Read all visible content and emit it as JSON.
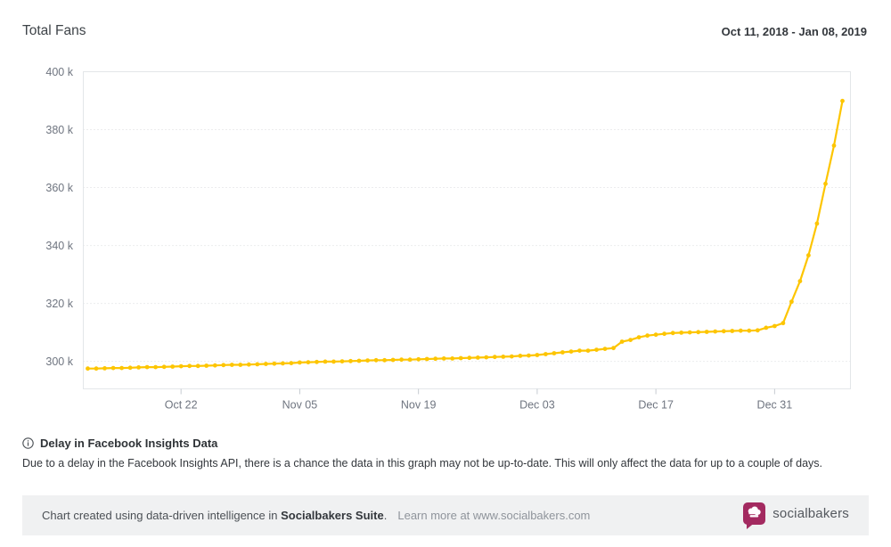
{
  "header": {
    "title": "Total Fans",
    "date_range": "Oct 11, 2018 - Jan 08, 2019"
  },
  "chart_data": {
    "type": "line",
    "title": "Total Fans",
    "x": {
      "start_date": "2018-10-11",
      "end_date": "2019-01-08",
      "frequency": "daily",
      "days": 90
    },
    "series": [
      {
        "name": "Total Fans",
        "unit": "thousands of fans",
        "values": [
          297.5,
          297.5,
          297.6,
          297.7,
          297.7,
          297.8,
          297.9,
          298.0,
          298.0,
          298.1,
          298.2,
          298.3,
          298.4,
          298.4,
          298.5,
          298.6,
          298.7,
          298.8,
          298.8,
          298.9,
          299.0,
          299.1,
          299.2,
          299.3,
          299.4,
          299.6,
          299.7,
          299.8,
          299.9,
          299.9,
          300.0,
          300.1,
          300.2,
          300.3,
          300.4,
          300.4,
          300.5,
          300.6,
          300.6,
          300.7,
          300.8,
          300.9,
          301.0,
          301.0,
          301.1,
          301.2,
          301.3,
          301.4,
          301.5,
          301.6,
          301.7,
          301.9,
          302.0,
          302.2,
          302.5,
          302.8,
          303.1,
          303.4,
          303.7,
          303.7,
          304.0,
          304.3,
          304.6,
          306.8,
          307.4,
          308.3,
          308.9,
          309.2,
          309.5,
          309.8,
          309.9,
          310.0,
          310.1,
          310.2,
          310.3,
          310.4,
          310.5,
          310.6,
          310.6,
          310.7,
          311.6,
          312.2,
          313.2,
          320.6,
          327.7,
          336.6,
          347.6,
          361.3,
          374.5,
          389.9
        ]
      }
    ],
    "x_ticks": [
      {
        "label": "Oct 22",
        "day": 11
      },
      {
        "label": "Nov 05",
        "day": 25
      },
      {
        "label": "Nov 19",
        "day": 39
      },
      {
        "label": "Dec 03",
        "day": 53
      },
      {
        "label": "Dec 17",
        "day": 67
      },
      {
        "label": "Dec 31",
        "day": 81
      }
    ],
    "y_ticks": [
      {
        "label": "300 k",
        "value": 300
      },
      {
        "label": "320 k",
        "value": 320
      },
      {
        "label": "340 k",
        "value": 340
      },
      {
        "label": "360 k",
        "value": 360
      },
      {
        "label": "380 k",
        "value": 380
      },
      {
        "label": "400 k",
        "value": 400
      }
    ],
    "ylim": [
      290.5,
      400
    ],
    "grid": "horizontal-dotted",
    "legend": "none",
    "marker": "circle"
  },
  "disclaimer": {
    "icon": "info-circle",
    "title": "Delay in Facebook Insights Data",
    "body": "Due to a delay in the Facebook Insights API, there is a chance the data in this graph may not be up-to-date. This will only affect the data for up to a couple of days."
  },
  "footer": {
    "text_prefix": "Chart created using data-driven intelligence in ",
    "brand_bold": "Socialbakers Suite",
    "text_suffix": ".",
    "learn_more": "Learn more at www.socialbakers.com",
    "logo_text": "socialbakers"
  },
  "colors": {
    "line": "#FDC500",
    "brand": "#A32A60",
    "grid": "#D8DADC",
    "plot_border": "#E3E6E9",
    "axis_text": "#6F7580",
    "tick_mark": "#C6CBD1",
    "footer_bg": "#F0F1F2"
  }
}
